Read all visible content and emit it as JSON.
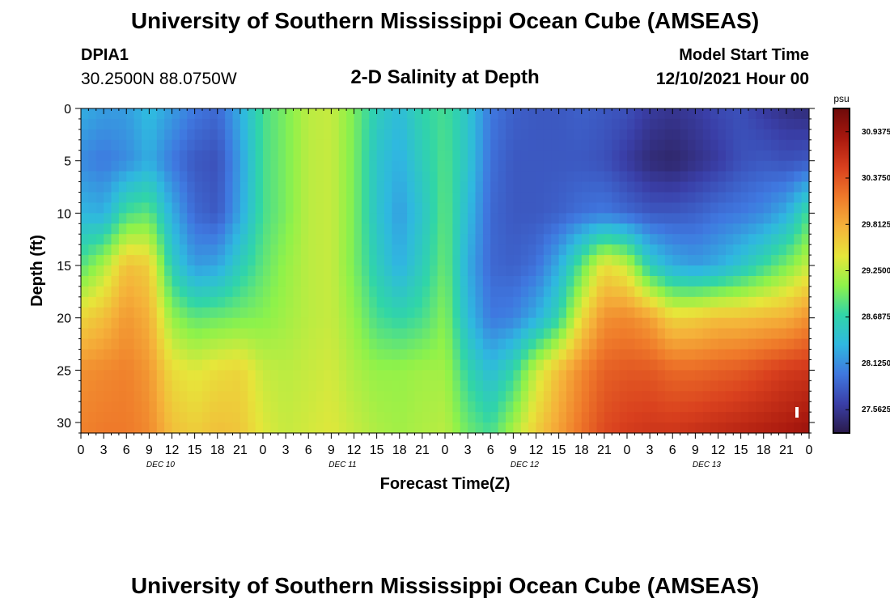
{
  "header": {
    "title": "University of Southern Mississippi Ocean Cube (AMSEAS)",
    "station": "DPIA1",
    "coords": "30.2500N  88.0750W",
    "subtitle": "2-D Salinity at Depth",
    "start_label": "Model Start Time",
    "start_date": "12/10/2021 Hour 00"
  },
  "footer": {
    "title": "University of Southern Mississippi Ocean Cube (AMSEAS)"
  },
  "chart_data": {
    "type": "heatmap",
    "xlabel": "Forecast Time(Z)",
    "ylabel": "Depth (ft)",
    "ylim": [
      0,
      31
    ],
    "xlim_hours": [
      0,
      96
    ],
    "y_reversed": true,
    "x_ticks": [
      "0",
      "3",
      "6",
      "9",
      "12",
      "15",
      "18",
      "21",
      "0",
      "3",
      "6",
      "9",
      "12",
      "15",
      "18",
      "21",
      "0",
      "3",
      "6",
      "9",
      "12",
      "15",
      "18",
      "21",
      "0",
      "3",
      "6",
      "9",
      "12",
      "15",
      "18",
      "21",
      "0"
    ],
    "y_ticks": [
      "0",
      "5",
      "10",
      "15",
      "20",
      "25",
      "30"
    ],
    "day_labels": [
      "DEC 10",
      "DEC 11",
      "DEC 12",
      "DEC 13"
    ],
    "colorbar": {
      "unit": "psu",
      "range": [
        27.28,
        31.22
      ],
      "tick_labels": [
        "30.9375",
        "30.3750",
        "29.8125",
        "29.2500",
        "28.6875",
        "28.1250",
        "27.5625"
      ],
      "colors": [
        "#2a1a4a",
        "#3a3fa8",
        "#3f78e0",
        "#2fb8e0",
        "#30d5a8",
        "#8ef24a",
        "#e6e63a",
        "#f5b23a",
        "#ef7a2a",
        "#d9401e",
        "#a8180e",
        "#6e0a0a"
      ]
    },
    "depths_ft": [
      0,
      5,
      10,
      15,
      20,
      25,
      31
    ],
    "times_h": [
      0,
      3,
      6,
      9,
      12,
      15,
      18,
      21,
      24,
      27,
      30,
      33,
      36,
      39,
      42,
      45,
      48,
      51,
      54,
      57,
      60,
      63,
      66,
      69,
      72,
      75,
      78,
      81,
      84,
      87,
      90,
      93,
      96
    ],
    "salinity_psu": [
      [
        28.3,
        28.2,
        28.2,
        28.4,
        28.2,
        28.0,
        27.9,
        28.3,
        28.8,
        29.0,
        29.25,
        29.3,
        29.0,
        28.6,
        28.4,
        28.7,
        28.8,
        28.5,
        28.0,
        27.85,
        27.8,
        27.8,
        27.85,
        27.8,
        27.75,
        27.6,
        27.55,
        27.6,
        27.7,
        27.75,
        27.6,
        27.5,
        27.45
      ],
      [
        28.1,
        28.0,
        28.1,
        28.3,
        28.0,
        27.8,
        27.75,
        28.2,
        28.8,
        29.0,
        29.25,
        29.3,
        29.0,
        28.5,
        28.3,
        28.6,
        28.85,
        28.5,
        27.95,
        27.8,
        27.8,
        27.8,
        27.8,
        27.75,
        27.6,
        27.45,
        27.4,
        27.5,
        27.6,
        27.75,
        27.8,
        27.75,
        27.8
      ],
      [
        28.35,
        28.3,
        28.8,
        28.9,
        28.3,
        27.9,
        27.8,
        28.25,
        28.8,
        29.0,
        29.25,
        29.3,
        29.0,
        28.5,
        28.2,
        28.5,
        28.9,
        28.4,
        27.9,
        27.8,
        27.8,
        27.85,
        27.95,
        28.0,
        27.9,
        27.8,
        27.8,
        27.85,
        27.95,
        28.0,
        28.1,
        28.3,
        28.8
      ],
      [
        28.85,
        29.2,
        29.7,
        29.6,
        28.6,
        28.2,
        28.25,
        28.6,
        28.9,
        29.1,
        29.25,
        29.3,
        29.0,
        28.6,
        28.3,
        28.6,
        28.95,
        28.3,
        27.9,
        27.85,
        27.95,
        28.3,
        28.9,
        29.5,
        29.3,
        28.6,
        28.3,
        28.2,
        28.3,
        28.5,
        28.75,
        29.0,
        29.3
      ],
      [
        29.55,
        29.7,
        29.95,
        29.8,
        29.1,
        28.9,
        28.95,
        29.0,
        29.05,
        29.15,
        29.25,
        29.3,
        29.1,
        28.8,
        28.7,
        28.8,
        29.05,
        28.4,
        28.0,
        28.05,
        28.3,
        28.7,
        29.5,
        30.0,
        30.05,
        29.9,
        29.55,
        29.6,
        29.7,
        29.7,
        29.75,
        29.8,
        30.0
      ],
      [
        30.0,
        30.05,
        30.1,
        29.95,
        29.5,
        29.4,
        29.5,
        29.55,
        29.3,
        29.25,
        29.3,
        29.35,
        29.2,
        29.1,
        29.1,
        29.15,
        29.15,
        28.7,
        28.4,
        28.7,
        29.3,
        29.7,
        30.05,
        30.3,
        30.35,
        30.35,
        30.25,
        30.25,
        30.3,
        30.35,
        30.45,
        30.55,
        30.6
      ],
      [
        30.1,
        30.15,
        30.15,
        30.05,
        29.7,
        29.6,
        29.7,
        29.65,
        29.4,
        29.3,
        29.35,
        29.4,
        29.3,
        29.2,
        29.15,
        29.2,
        29.25,
        28.95,
        28.8,
        29.2,
        29.6,
        29.9,
        30.2,
        30.45,
        30.55,
        30.6,
        30.6,
        30.65,
        30.7,
        30.75,
        30.8,
        30.85,
        30.95
      ]
    ]
  }
}
